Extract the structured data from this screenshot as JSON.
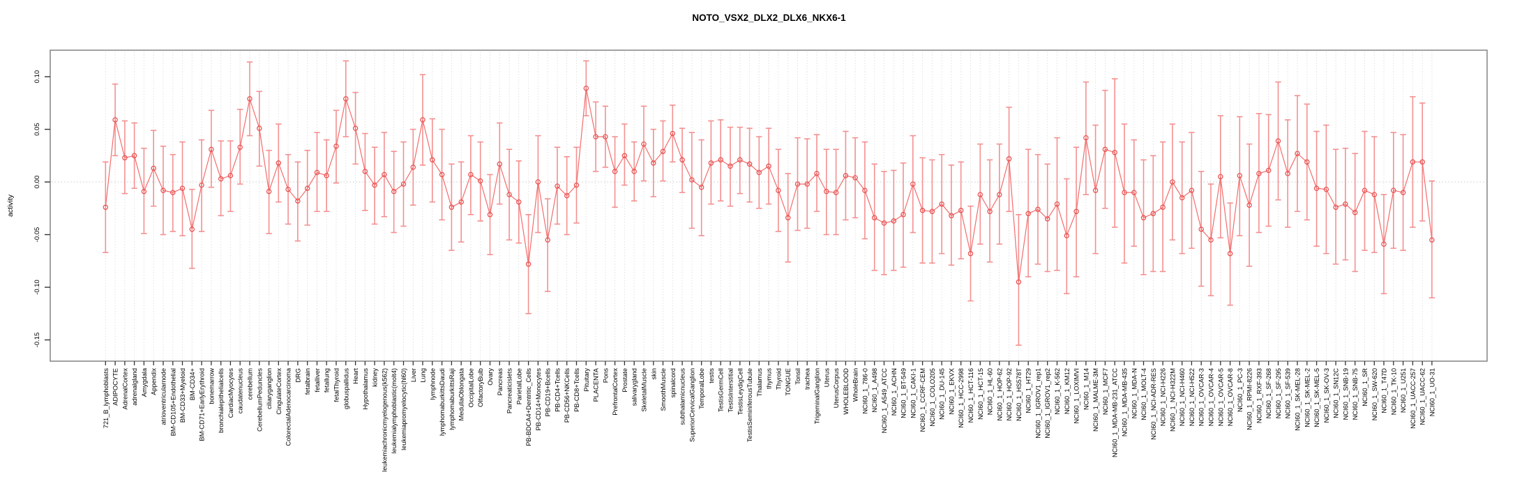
{
  "chart_data": {
    "type": "line",
    "title": "NOTO_VSX2_DLX2_DLX6_NKX6-1",
    "xlabel": "",
    "ylabel": "activity",
    "ylim": [
      -0.17,
      0.125
    ],
    "yticks": [
      0.1,
      0.05,
      0.0,
      -0.05,
      -0.1,
      -0.15
    ],
    "grid": "light dotted vertical line per category, dotted horizontal line at zero",
    "legend_position": "none",
    "marker": "open-circle",
    "error_bars": true,
    "colors": {
      "errorbar": "#f49090",
      "line": "#f26c6c",
      "marker": "#e85555",
      "grid": "#e0e0e0",
      "zero_line": "#c8c8c8",
      "axis": "#333333",
      "box_border": "#8a8a8a",
      "text": "#000000",
      "background": "#ffffff"
    },
    "categories": [
      "721_B_lymphoblasts",
      "ADIPOCYTE",
      "AdrenalCortex",
      "adrenalgland",
      "Amygdala",
      "Appendix",
      "atrioventricularnode",
      "BM-CD105+Endothelial",
      "BM-CD33+Myeloid",
      "BM-CD34+",
      "BM-CD71+EarlyErythroid",
      "bonemarrow",
      "bronchialepithelialcells",
      "CardiacMyocytes",
      "caudatenucleus",
      "cerebellum",
      "CerebellumPeduncles",
      "ciliaryganglion",
      "CingulateCortex",
      "ColorectalAdenocarcinoma",
      "DRG",
      "fetalbrain",
      "fetalliver",
      "fetallung",
      "fetalThyroid",
      "globuspallidus",
      "Heart",
      "Hypothalamus",
      "kidney",
      "leukemiachronicmyelogenous(k562)",
      "leukemialymphoblastic(molt4)",
      "leukemiapromyelocytic(hl60)",
      "Liver",
      "Lung",
      "lymphnode",
      "lymphomaburkittsDaudi",
      "lymphomaburkittsRaji",
      "MedullaOblongata",
      "OccipitalLobe",
      "OlfactoryBulb",
      "Ovary",
      "Pancreas",
      "Pancreaticislets",
      "ParietalLobe",
      "PB-BDCA4+Dentritic_Cells",
      "PB-CD14+Monocytes",
      "PB-CD19+Bcells",
      "PB-CD4+Tcells",
      "PB-CD56+NKCells",
      "PB-CD8+Tcells",
      "Pituitary",
      "PLACENTA",
      "Pons",
      "PrefrontalCortex",
      "Prostate",
      "salivarygland",
      "SkeletalMuscle",
      "skin",
      "SmoothMuscle",
      "spinalcord",
      "subthalamicnucleus",
      "SuperiorCervicalGanglion",
      "TemporalLobe",
      "testis",
      "TestisGermCell",
      "TestisInterstitial",
      "TestisLeydigCell",
      "TestisSeminiferousTubule",
      "Thalamus",
      "thymus",
      "Thyroid",
      "TONGUE",
      "Tonsil",
      "trachea",
      "TrigeminalGanglion",
      "Uterus",
      "UterusCorpus",
      "WHOLEBLOOD",
      "WholeBrain",
      "NCI60_1_786-0",
      "NCI60_1_A498",
      "NCI60_1_A549_ATCC",
      "NCI60_1_ACHN",
      "NCI60_1_BT-549",
      "NCI60_1_CAKI-1",
      "NCI60_1_CCRF-CEM",
      "NCI60_1_COLO205",
      "NCI60_1_DU-145",
      "NCI60_1_EKVX",
      "NCI60_1_HCC-2998",
      "NCI60_1_HCT-116",
      "NCI60_1_HCT-15",
      "NCI60_1_HL-60",
      "NCI60_1_HOP-62",
      "NCI60_1_HOP-92",
      "NCI60_1_HS578T",
      "NCI60_1_HT29",
      "NCI60_1_IGROV1_rep1",
      "NCI60_1_IGROV1_rep2",
      "NCI60_1_K-562",
      "NCI60_1_KM12",
      "NCI60_1_LOXIMVI",
      "NCI60_1_M14",
      "NCI60_1_MALME-3M",
      "NCI60_1_MCF7",
      "NCI60_1_MDA-MB-231_ATCC",
      "NCI60_1_MDA-MB-435",
      "NCI60_1_MDA-N",
      "NCI60_1_MOLT-4",
      "NCI60_1_NCI-ADR-RES",
      "NCI60_1_NCI-H226",
      "NCI60_1_NCI-H322M",
      "NCI60_1_NCI-H460",
      "NCI60_1_NCI-H522",
      "NCI60_1_OVCAR-3",
      "NCI60_1_OVCAR-4",
      "NCI60_1_OVCAR-5",
      "NCI60_1_OVCAR-8",
      "NCI60_1_PC-3",
      "NCI60_1_RPMI-8226",
      "NCI60_1_RXF-393",
      "NCI60_1_SF-268",
      "NCI60_1_SF-295",
      "NCI60_1_SF-539",
      "NCI60_1_SK-MEL-28",
      "NCI60_1_SK-MEL-2",
      "NCI60_1_SK-MEL-5",
      "NCI60_1_SK-OV-3",
      "NCI60_1_SN12C",
      "NCI60_1_SNB-19",
      "NCI60_1_SNB-75",
      "NCI60_1_SR",
      "NCI60_1_SW-620",
      "NCI60_1_T47D",
      "NCI60_1_TK-10",
      "NCI60_1_U251",
      "NCI60_1_UACC-257",
      "NCI60_1_UACC-62",
      "NCI60_1_UO-31"
    ],
    "series": [
      {
        "name": "activity",
        "values": [
          -0.024,
          0.059,
          0.023,
          0.025,
          -0.009,
          0.013,
          -0.008,
          -0.01,
          -0.006,
          -0.045,
          -0.003,
          0.031,
          0.003,
          0.006,
          0.033,
          0.079,
          0.051,
          -0.009,
          0.018,
          -0.007,
          -0.018,
          -0.006,
          0.009,
          0.006,
          0.034,
          0.079,
          0.051,
          0.01,
          -0.003,
          0.007,
          -0.009,
          -0.002,
          0.014,
          0.059,
          0.021,
          0.007,
          -0.024,
          -0.019,
          0.007,
          0.001,
          -0.031,
          0.017,
          -0.012,
          -0.019,
          -0.078,
          0.0,
          -0.055,
          -0.004,
          -0.013,
          -0.003,
          0.089,
          0.043,
          0.043,
          0.01,
          0.025,
          0.01,
          0.036,
          0.018,
          0.029,
          0.046,
          0.021,
          0.002,
          -0.005,
          0.018,
          0.021,
          0.015,
          0.021,
          0.017,
          0.009,
          0.015,
          -0.008,
          -0.034,
          -0.002,
          -0.002,
          0.008,
          -0.009,
          -0.01,
          0.006,
          0.004,
          -0.008,
          -0.034,
          -0.039,
          -0.037,
          -0.031,
          -0.002,
          -0.027,
          -0.028,
          -0.021,
          -0.032,
          -0.027,
          -0.068,
          -0.012,
          -0.028,
          -0.012,
          0.022,
          -0.095,
          -0.03,
          -0.026,
          -0.035,
          -0.021,
          -0.051,
          -0.028,
          0.042,
          -0.008,
          0.031,
          0.028,
          -0.01,
          -0.01,
          -0.034,
          -0.03,
          -0.024,
          0.0,
          -0.015,
          -0.008,
          -0.045,
          -0.055,
          0.005,
          -0.068,
          0.006,
          -0.022,
          0.008,
          0.011,
          0.039,
          0.008,
          0.027,
          0.019,
          -0.006,
          -0.007,
          -0.024,
          -0.021,
          -0.029,
          -0.008,
          -0.012,
          -0.059,
          -0.008,
          -0.01,
          0.019,
          0.019,
          -0.055
        ],
        "err_low": [
          -0.067,
          0.025,
          -0.011,
          -0.006,
          -0.049,
          -0.023,
          -0.05,
          -0.047,
          -0.051,
          -0.082,
          -0.047,
          -0.005,
          -0.032,
          -0.028,
          -0.002,
          0.044,
          0.015,
          -0.049,
          -0.019,
          -0.04,
          -0.056,
          -0.041,
          -0.028,
          -0.028,
          -0.001,
          0.043,
          0.017,
          -0.027,
          -0.04,
          -0.033,
          -0.048,
          -0.042,
          -0.022,
          0.016,
          -0.019,
          -0.036,
          -0.065,
          -0.057,
          -0.031,
          -0.037,
          -0.069,
          -0.021,
          -0.055,
          -0.058,
          -0.125,
          -0.048,
          -0.104,
          -0.04,
          -0.05,
          -0.039,
          0.063,
          0.01,
          0.014,
          -0.024,
          -0.003,
          -0.018,
          0.001,
          -0.014,
          0.001,
          0.019,
          -0.01,
          -0.044,
          -0.051,
          -0.021,
          -0.018,
          -0.023,
          -0.011,
          -0.019,
          -0.025,
          -0.021,
          -0.047,
          -0.076,
          -0.046,
          -0.044,
          -0.028,
          -0.05,
          -0.05,
          -0.036,
          -0.034,
          -0.054,
          -0.084,
          -0.088,
          -0.084,
          -0.081,
          -0.048,
          -0.077,
          -0.077,
          -0.068,
          -0.079,
          -0.073,
          -0.113,
          -0.059,
          -0.076,
          -0.059,
          -0.028,
          -0.155,
          -0.09,
          -0.078,
          -0.085,
          -0.084,
          -0.106,
          -0.09,
          -0.012,
          -0.068,
          -0.025,
          -0.043,
          -0.077,
          -0.061,
          -0.088,
          -0.085,
          -0.085,
          -0.055,
          -0.068,
          -0.063,
          -0.099,
          -0.108,
          -0.053,
          -0.117,
          -0.051,
          -0.08,
          -0.048,
          -0.042,
          -0.017,
          -0.043,
          -0.028,
          -0.036,
          -0.061,
          -0.068,
          -0.078,
          -0.074,
          -0.085,
          -0.065,
          -0.067,
          -0.106,
          -0.063,
          -0.065,
          -0.043,
          -0.037,
          -0.11
        ],
        "err_high": [
          0.019,
          0.093,
          0.058,
          0.056,
          0.032,
          0.049,
          0.034,
          0.026,
          0.038,
          -0.007,
          0.04,
          0.068,
          0.039,
          0.039,
          0.069,
          0.114,
          0.086,
          0.03,
          0.055,
          0.026,
          0.019,
          0.03,
          0.047,
          0.04,
          0.068,
          0.115,
          0.085,
          0.046,
          0.033,
          0.047,
          0.029,
          0.038,
          0.05,
          0.102,
          0.06,
          0.05,
          0.017,
          0.019,
          0.044,
          0.038,
          0.007,
          0.056,
          0.031,
          0.02,
          -0.031,
          0.044,
          -0.016,
          0.033,
          0.024,
          0.033,
          0.115,
          0.076,
          0.072,
          0.043,
          0.055,
          0.038,
          0.072,
          0.05,
          0.058,
          0.073,
          0.051,
          0.047,
          0.04,
          0.058,
          0.059,
          0.052,
          0.052,
          0.051,
          0.043,
          0.051,
          0.031,
          0.008,
          0.042,
          0.041,
          0.045,
          0.031,
          0.031,
          0.048,
          0.042,
          0.038,
          0.017,
          0.01,
          0.011,
          0.018,
          0.044,
          0.023,
          0.021,
          0.026,
          0.016,
          0.019,
          -0.023,
          0.036,
          0.021,
          0.036,
          0.071,
          -0.031,
          0.031,
          0.026,
          0.017,
          0.042,
          0.003,
          0.033,
          0.095,
          0.054,
          0.087,
          0.098,
          0.055,
          0.04,
          0.021,
          0.025,
          0.038,
          0.055,
          0.038,
          0.047,
          0.01,
          -0.002,
          0.063,
          -0.02,
          0.062,
          0.036,
          0.065,
          0.064,
          0.095,
          0.059,
          0.082,
          0.074,
          0.048,
          0.054,
          0.031,
          0.032,
          0.027,
          0.048,
          0.043,
          -0.012,
          0.047,
          0.045,
          0.081,
          0.075,
          0.001
        ]
      }
    ]
  }
}
